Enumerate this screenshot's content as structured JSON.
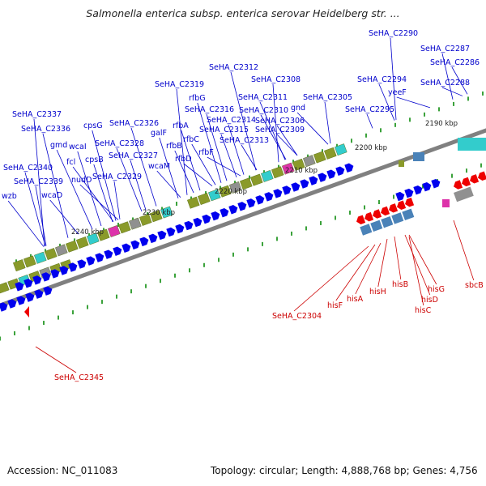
{
  "map": {
    "title": "Salmonella enterica subsp. enterica serovar Heidelberg str. ...",
    "accession": "Accession: NC_011083",
    "topology": "Topology: circular; Length: 4,888,768 bp; Genes: 4,756"
  },
  "colors": {
    "forward_gene": "#0000ee",
    "reverse_gene": "#ee0000",
    "backbone": "#808080",
    "tick": "#0a8a0a",
    "forward_label": "#0000cc",
    "reverse_label": "#cc0000",
    "cog_olive": "#8a9a2a",
    "cog_cyan": "#33cccc",
    "cog_steel": "#4a82b8",
    "cog_gray": "#909090",
    "cog_magenta": "#dd33aa"
  },
  "kbp_labels": [
    "2190 kbp",
    "2200 kbp",
    "2210 kbp",
    "2220 kbp",
    "2230 kbp",
    "2240 kbp"
  ],
  "forward_labels": [
    "SeHA_C2290",
    "SeHA_C2287",
    "SeHA_C2286",
    "SeHA_C2288",
    "SeHA_C2312",
    "SeHA_C2308",
    "SeHA_C2319",
    "SeHA_C2294",
    "yeeF",
    "SeHA_C2311",
    "SeHA_C2305",
    "rfbG",
    "gnd",
    "SeHA_C2316",
    "SeHA_C2310",
    "SeHA_C2295",
    "SeHA_C2337",
    "SeHA_C2314",
    "SeHA_C2306",
    "SeHA_C2326",
    "rfbA",
    "cpsG",
    "SeHA_C2315",
    "SeHA_C2309",
    "SeHA_C2336",
    "galF",
    "rfbC",
    "SeHA_C2313",
    "gmd",
    "SeHA_C2328",
    "rfbB",
    "wcaI",
    "SeHA_C2327",
    "rfbF",
    "fcl",
    "cpsB",
    "wcaM",
    "rfbD",
    "SeHA_C2340",
    "nudD",
    "SeHA_C2329",
    "SeHA_C2339",
    "wcaD",
    "wzb"
  ],
  "reverse_labels": [
    "sbcB",
    "hisG",
    "hisB",
    "hisD",
    "hisH",
    "hisC",
    "hisA",
    "hisF",
    "SeHA_C2304",
    "SeHA_C2345"
  ]
}
